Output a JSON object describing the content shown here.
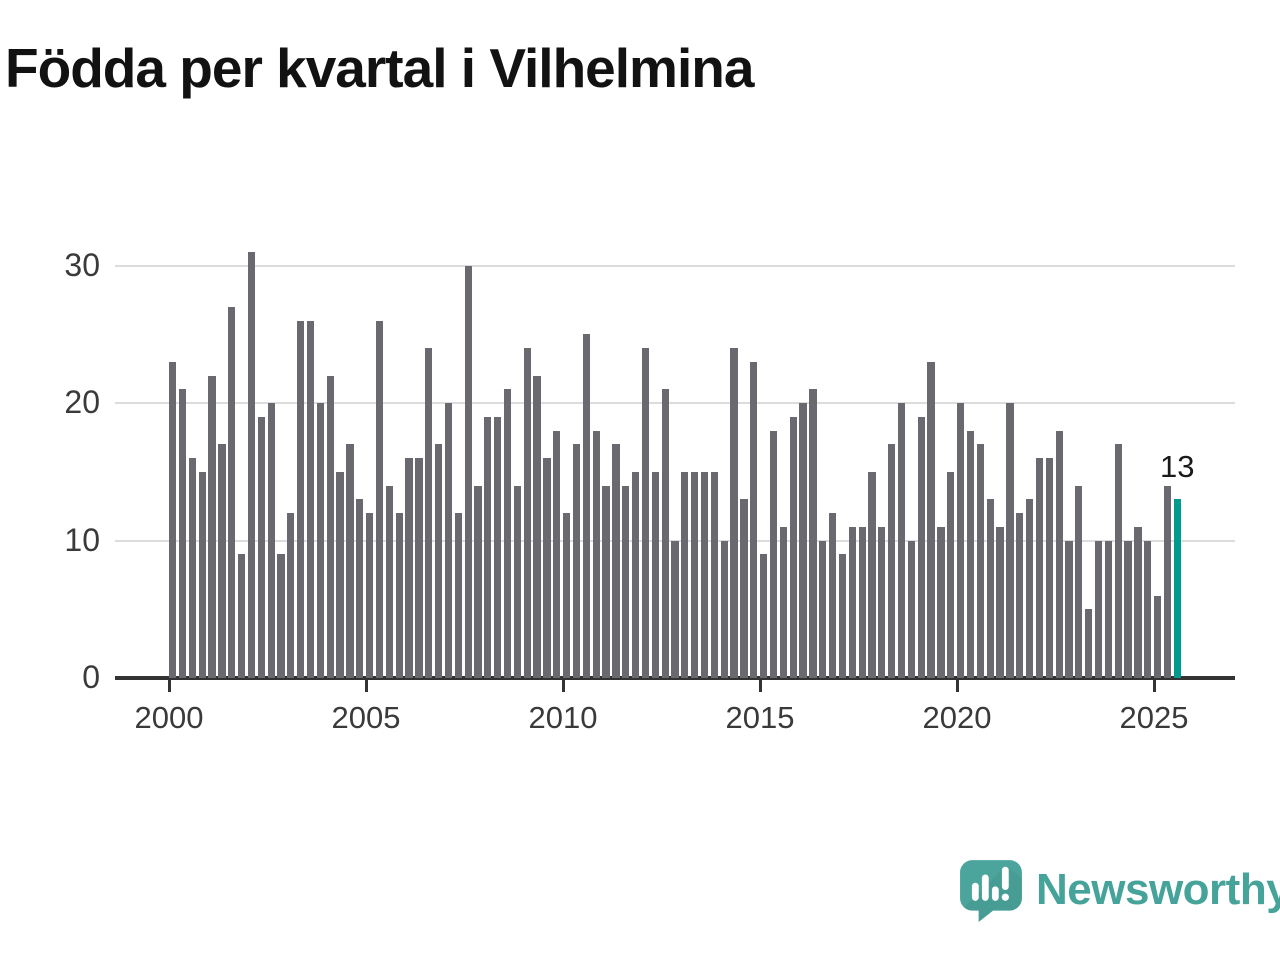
{
  "title": "Födda per kvartal i Vilhelmina",
  "chart_data": {
    "type": "bar",
    "title": "Födda per kvartal i Vilhelmina",
    "x_unit": "quarter",
    "x_start": "2000 Q1",
    "x_end": "2025 Q3",
    "values": [
      23,
      21,
      16,
      15,
      22,
      17,
      27,
      9,
      31,
      19,
      20,
      9,
      12,
      26,
      26,
      20,
      22,
      15,
      17,
      13,
      12,
      26,
      14,
      12,
      16,
      16,
      24,
      17,
      20,
      12,
      30,
      14,
      19,
      19,
      21,
      14,
      24,
      22,
      16,
      18,
      12,
      17,
      25,
      18,
      14,
      17,
      14,
      15,
      24,
      15,
      21,
      10,
      15,
      15,
      15,
      15,
      10,
      24,
      13,
      23,
      9,
      18,
      11,
      19,
      20,
      21,
      10,
      12,
      9,
      11,
      11,
      15,
      11,
      17,
      20,
      10,
      19,
      23,
      11,
      15,
      20,
      18,
      17,
      13,
      11,
      20,
      12,
      13,
      16,
      16,
      18,
      10,
      14,
      5,
      10,
      10,
      17,
      10,
      11,
      10,
      6,
      14,
      13
    ],
    "highlight_index": 102,
    "highlight_label": "13",
    "yticks": [
      0,
      10,
      20,
      30
    ],
    "ylim": [
      0,
      31
    ],
    "xticks": [
      "2000",
      "2005",
      "2010",
      "2015",
      "2020",
      "2025"
    ],
    "grid": "horizontal",
    "legend": "none",
    "bar_color": "#6a6970",
    "highlight_color": "#019a8d"
  },
  "annotation": {
    "last_value_label": "13"
  },
  "logo": {
    "name": "Newsworthy",
    "icon": "bar-chart-speech-bubble",
    "color": "#46a39a"
  }
}
